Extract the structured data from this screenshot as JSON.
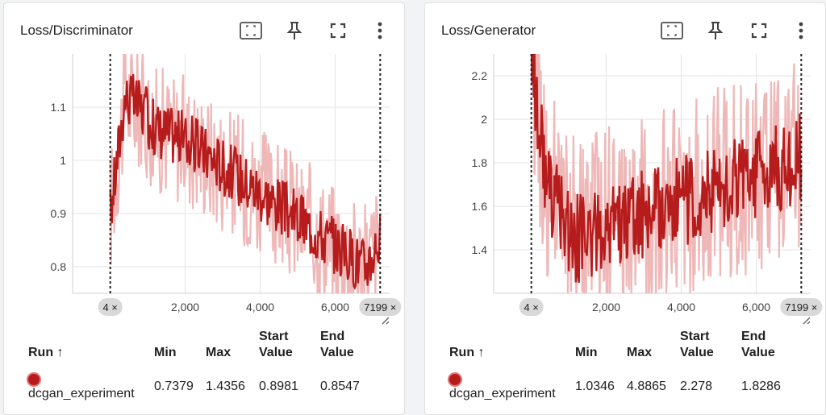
{
  "cards": [
    {
      "title": "Loss/Discriminator",
      "range_start_label": "4 ×",
      "range_end_label": "7199 ×",
      "table": {
        "headers": {
          "run": "Run ↑",
          "min": "Min",
          "max": "Max",
          "start_line1": "Start",
          "start_line2": "Value",
          "end_line1": "End",
          "end_line2": "Value"
        },
        "row": {
          "run": "dcgan_experiment",
          "min": "0.7379",
          "max": "1.4356",
          "start": "0.8981",
          "end": "0.8547"
        }
      }
    },
    {
      "title": "Loss/Generator",
      "range_start_label": "4 ×",
      "range_end_label": "7199 ×",
      "table": {
        "headers": {
          "run": "Run ↑",
          "min": "Min",
          "max": "Max",
          "start_line1": "Start",
          "start_line2": "Value",
          "end_line1": "End",
          "end_line2": "Value"
        },
        "row": {
          "run": "dcgan_experiment",
          "min": "1.0346",
          "max": "4.8865",
          "start": "2.278",
          "end": "1.8286"
        }
      }
    }
  ],
  "chart_data": [
    {
      "type": "line",
      "title": "Loss/Discriminator",
      "xlim": [
        -1000,
        7450
      ],
      "ylim": [
        0.75,
        1.2
      ],
      "x_ticks": [
        2000,
        4000,
        6000
      ],
      "x_tick_labels": [
        "2,000",
        "4,000",
        "6,000"
      ],
      "y_ticks": [
        0.8,
        0.9,
        1.0,
        1.1
      ],
      "y_tick_labels": [
        "0.8",
        "0.9",
        "1",
        "1.1"
      ],
      "range_markers": [
        4,
        7199
      ],
      "grid": true,
      "raw_color": "#efb8b8",
      "smoothed_color": "#b71c1c",
      "series": [
        {
          "name": "dcgan_experiment",
          "x": [
            4,
            400,
            800,
            1200,
            1600,
            2000,
            2400,
            2800,
            3200,
            3600,
            4000,
            4400,
            4800,
            5200,
            5600,
            6000,
            6400,
            6800,
            7199
          ],
          "values": [
            0.8981,
            1.12,
            1.1,
            1.06,
            1.05,
            1.04,
            1.02,
            1.0,
            0.98,
            0.96,
            0.94,
            0.92,
            0.9,
            0.88,
            0.86,
            0.84,
            0.82,
            0.8,
            0.8547
          ]
        }
      ]
    },
    {
      "type": "line",
      "title": "Loss/Generator",
      "xlim": [
        -1000,
        7450
      ],
      "ylim": [
        1.2,
        2.3
      ],
      "x_ticks": [
        2000,
        4000,
        6000
      ],
      "x_tick_labels": [
        "2,000",
        "4,000",
        "6,000"
      ],
      "y_ticks": [
        1.4,
        1.6,
        1.8,
        2.0,
        2.2
      ],
      "y_tick_labels": [
        "1.4",
        "1.6",
        "1.8",
        "2",
        "2.2"
      ],
      "range_markers": [
        4,
        7199
      ],
      "grid": true,
      "raw_color": "#efb8b8",
      "smoothed_color": "#b71c1c",
      "series": [
        {
          "name": "dcgan_experiment",
          "x": [
            4,
            400,
            800,
            1200,
            1600,
            2000,
            2400,
            2800,
            3200,
            3600,
            4000,
            4400,
            4800,
            5200,
            5600,
            6000,
            6400,
            6800,
            7199
          ],
          "values": [
            2.278,
            1.7,
            1.55,
            1.45,
            1.48,
            1.5,
            1.52,
            1.55,
            1.57,
            1.6,
            1.62,
            1.65,
            1.68,
            1.7,
            1.72,
            1.75,
            1.78,
            1.8,
            1.8286
          ]
        }
      ]
    }
  ]
}
